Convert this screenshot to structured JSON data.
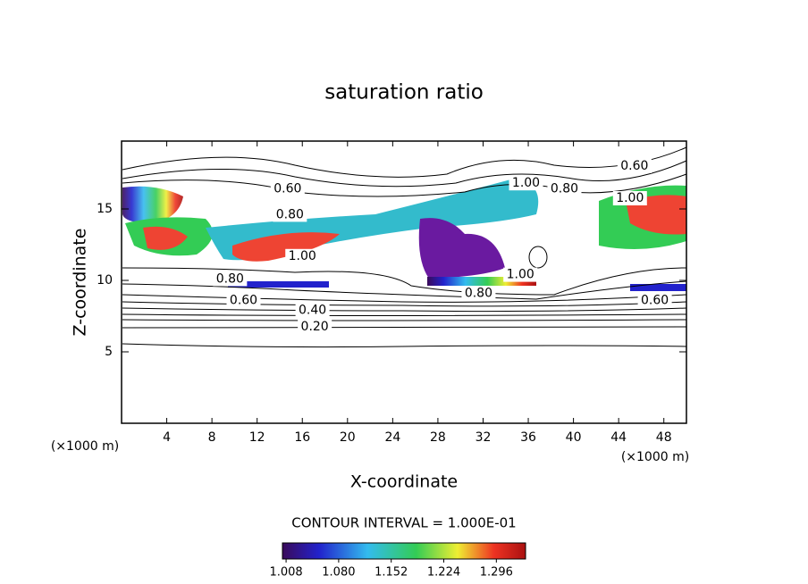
{
  "chart_data": {
    "type": "contour",
    "title": "saturation ratio",
    "x_label": "X-coordinate",
    "y_label": "Z-coordinate",
    "x_unit_label": "(×1000 m)",
    "y_unit_label": "(×1000 m)",
    "xlim": [
      0,
      50
    ],
    "ylim": [
      0,
      19.75
    ],
    "xticks": [
      4,
      8,
      12,
      16,
      20,
      24,
      28,
      32,
      36,
      40,
      44,
      48
    ],
    "yticks": [
      5,
      10,
      15
    ],
    "contour_interval_text": "CONTOUR INTERVAL = 1.000E-01",
    "contour_labels": [
      {
        "label": "0.60",
        "x": 14.7,
        "y": 16.4
      },
      {
        "label": "0.80",
        "x": 14.9,
        "y": 14.6
      },
      {
        "label": "1.00",
        "x": 16.0,
        "y": 11.7
      },
      {
        "label": "0.80",
        "x": 9.6,
        "y": 10.1
      },
      {
        "label": "0.60",
        "x": 10.8,
        "y": 8.6
      },
      {
        "label": "0.40",
        "x": 16.9,
        "y": 7.9
      },
      {
        "label": "0.20",
        "x": 17.1,
        "y": 6.75
      },
      {
        "label": "0.80",
        "x": 31.6,
        "y": 9.1
      },
      {
        "label": "1.00",
        "x": 35.3,
        "y": 10.4
      },
      {
        "label": "1.00",
        "x": 35.8,
        "y": 16.8
      },
      {
        "label": "0.80",
        "x": 39.2,
        "y": 16.4
      },
      {
        "label": "0.60",
        "x": 45.4,
        "y": 18.0
      },
      {
        "label": "1.00",
        "x": 45.0,
        "y": 15.75
      },
      {
        "label": "0.60",
        "x": 47.2,
        "y": 8.6
      }
    ],
    "colorbar": {
      "lim": [
        1.003,
        1.336
      ],
      "ticks": [
        {
          "value": 1.008,
          "label": "1.008"
        },
        {
          "value": 1.08,
          "label": "1.080"
        },
        {
          "value": 1.152,
          "label": "1.152"
        },
        {
          "value": 1.224,
          "label": "1.224"
        },
        {
          "value": 1.296,
          "label": "1.296"
        }
      ]
    }
  }
}
